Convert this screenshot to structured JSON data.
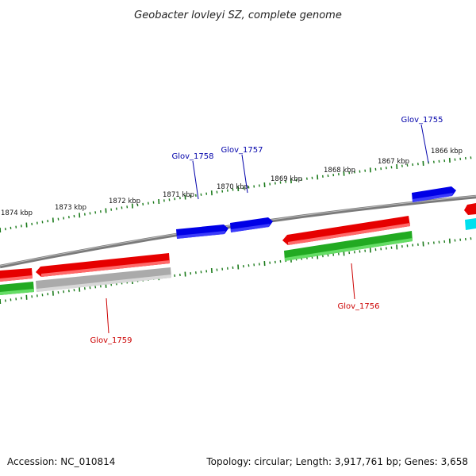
{
  "title": "Geobacter lovleyi SZ, complete genome",
  "accession": "Accession: NC_010814",
  "summary": "Topology: circular; Length: 3,917,761 bp; Genes: 3,658",
  "colors": {
    "backbone": "#7a7a7a",
    "tick": "#1a7a1a",
    "forward_cds": "#0000e6",
    "reverse_cds": "#e60000",
    "gene": "#22aa22",
    "pseudogene": "#aaaaaa",
    "other": "#00e0ee",
    "label_forward": "#0000aa",
    "label_reverse": "#cc0000"
  },
  "kbp_labels": [
    "1874 kbp",
    "1873 kbp",
    "1872 kbp",
    "1871 kbp",
    "1870 kbp",
    "1869 kbp",
    "1868 kbp",
    "1867 kbp",
    "1866 kbp"
  ],
  "gene_labels": [
    {
      "name": "Glov_1758",
      "strand": "forward"
    },
    {
      "name": "Glov_1757",
      "strand": "forward"
    },
    {
      "name": "Glov_1755",
      "strand": "forward"
    },
    {
      "name": "Glov_1759",
      "strand": "reverse"
    },
    {
      "name": "Glov_1756",
      "strand": "reverse"
    }
  ]
}
